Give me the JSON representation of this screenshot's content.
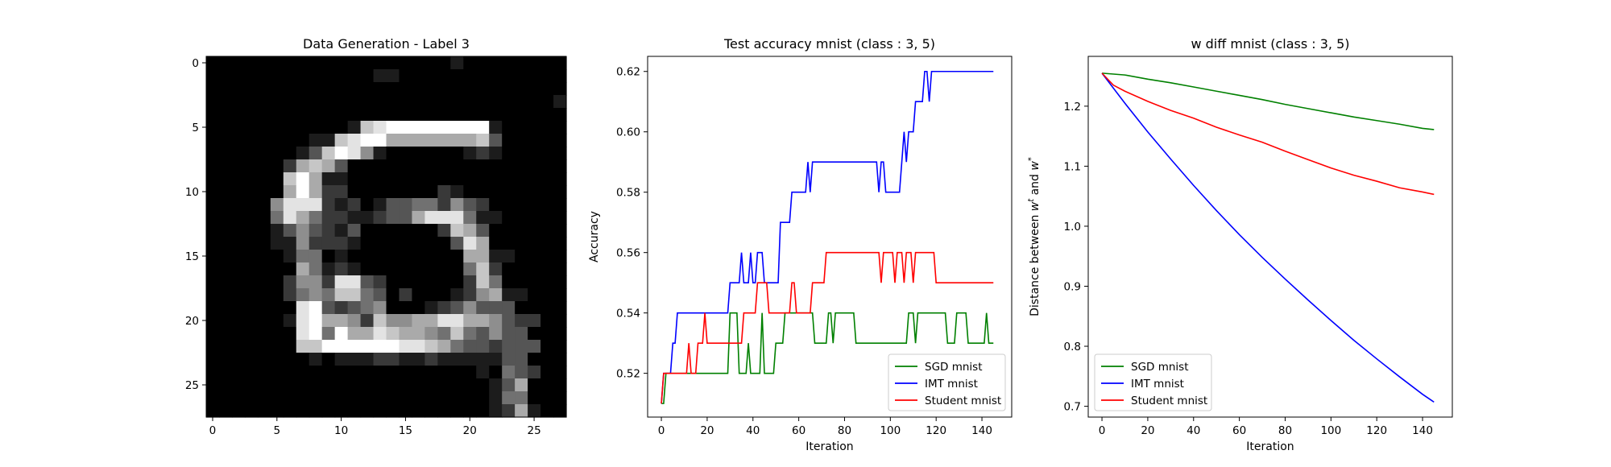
{
  "figure": {
    "panels": 3
  },
  "chart_data": [
    {
      "type": "heatmap",
      "title": "Data Generation - Label 3",
      "xlabel": "",
      "ylabel": "",
      "colormap": "gray",
      "xticks": [
        0,
        5,
        10,
        15,
        20,
        25
      ],
      "yticks": [
        0,
        5,
        10,
        15,
        20,
        25
      ],
      "xlim": [
        -0.5,
        27.5
      ],
      "ylim": [
        27.5,
        -0.5
      ],
      "grid_size": [
        28,
        28
      ],
      "rows": [
        "0000000000000000000100000000",
        "0000000000000110000000000000",
        "0000000000000000000000000000",
        "0000000000000000000000000001",
        "0000000000000000000000000000",
        "0000000000017899999999100000",
        "0000000011789966666667300000",
        "0000000137985100000012100000",
        "0000002676300000000000000000",
        "0000007961100000000000000000",
        "0000006962200000002100000000",
        "0000058882120133442532000000",
        "0000048642211233688841100000",
        "0000013532130000002763000000",
        "0000011522210000000386000000",
        "0000001440100000000066110000",
        "0000000641210000000047200000",
        "0000002552883200000027400000",
        "0000002454774302000125611000",
        "0000000893234500012353330000",
        "0000001896652755668866532200",
        "0000000894966876654743533000",
        "0000000779999998876433233300",
        "0000000010111221121111133000",
        "0000000000000000000001043200",
        "0000000000000000000000136000",
        "0000000000000000000000144000",
        "0000000000000000000000126100"
      ]
    },
    {
      "type": "line",
      "title": "Test accuracy mnist (class : 3, 5)",
      "xlabel": "Iteration",
      "ylabel": "Accuracy",
      "xlim": [
        -6,
        153
      ],
      "ylim": [
        0.5055,
        0.625
      ],
      "xticks": [
        0,
        20,
        40,
        60,
        80,
        100,
        120,
        140
      ],
      "yticks": [
        0.52,
        0.54,
        0.56,
        0.58,
        0.6,
        0.62
      ],
      "ytick_labels": [
        "0.52",
        "0.54",
        "0.56",
        "0.58",
        "0.60",
        "0.62"
      ],
      "legend_position": "lower-right",
      "series": [
        {
          "name": "SGD mnist",
          "color": "#008000",
          "points": [
            [
              0,
              0.51
            ],
            [
              1,
              0.51
            ],
            [
              2,
              0.52
            ],
            [
              29,
              0.52
            ],
            [
              30,
              0.54
            ],
            [
              33,
              0.54
            ],
            [
              34,
              0.52
            ],
            [
              37,
              0.52
            ],
            [
              38,
              0.53
            ],
            [
              39,
              0.52
            ],
            [
              43,
              0.52
            ],
            [
              44,
              0.54
            ],
            [
              45,
              0.52
            ],
            [
              49,
              0.52
            ],
            [
              50,
              0.53
            ],
            [
              53,
              0.53
            ],
            [
              54,
              0.54
            ],
            [
              66,
              0.54
            ],
            [
              67,
              0.53
            ],
            [
              72,
              0.53
            ],
            [
              73,
              0.54
            ],
            [
              74,
              0.54
            ],
            [
              75,
              0.53
            ],
            [
              76,
              0.54
            ],
            [
              84,
              0.54
            ],
            [
              85,
              0.53
            ],
            [
              107,
              0.53
            ],
            [
              108,
              0.54
            ],
            [
              110,
              0.54
            ],
            [
              111,
              0.53
            ],
            [
              112,
              0.54
            ],
            [
              124,
              0.54
            ],
            [
              125,
              0.53
            ],
            [
              128,
              0.53
            ],
            [
              129,
              0.54
            ],
            [
              133,
              0.54
            ],
            [
              134,
              0.53
            ],
            [
              141,
              0.53
            ],
            [
              142,
              0.54
            ],
            [
              143,
              0.53
            ],
            [
              145,
              0.53
            ]
          ]
        },
        {
          "name": "IMT mnist",
          "color": "#0000ff",
          "points": [
            [
              0,
              0.51
            ],
            [
              1,
              0.52
            ],
            [
              4,
              0.52
            ],
            [
              5,
              0.53
            ],
            [
              6,
              0.53
            ],
            [
              7,
              0.54
            ],
            [
              29,
              0.54
            ],
            [
              30,
              0.55
            ],
            [
              34,
              0.55
            ],
            [
              35,
              0.56
            ],
            [
              36,
              0.55
            ],
            [
              38,
              0.55
            ],
            [
              39,
              0.56
            ],
            [
              40,
              0.55
            ],
            [
              41,
              0.55
            ],
            [
              42,
              0.56
            ],
            [
              44,
              0.56
            ],
            [
              45,
              0.55
            ],
            [
              51,
              0.55
            ],
            [
              52,
              0.57
            ],
            [
              56,
              0.57
            ],
            [
              57,
              0.58
            ],
            [
              63,
              0.58
            ],
            [
              64,
              0.59
            ],
            [
              65,
              0.58
            ],
            [
              66,
              0.59
            ],
            [
              94,
              0.59
            ],
            [
              95,
              0.58
            ],
            [
              96,
              0.59
            ],
            [
              97,
              0.59
            ],
            [
              98,
              0.58
            ],
            [
              104,
              0.58
            ],
            [
              105,
              0.59
            ],
            [
              106,
              0.6
            ],
            [
              107,
              0.59
            ],
            [
              108,
              0.6
            ],
            [
              110,
              0.6
            ],
            [
              111,
              0.61
            ],
            [
              114,
              0.61
            ],
            [
              115,
              0.62
            ],
            [
              116,
              0.62
            ],
            [
              117,
              0.61
            ],
            [
              118,
              0.62
            ],
            [
              145,
              0.62
            ]
          ]
        },
        {
          "name": "Student mnist",
          "color": "#ff0000",
          "points": [
            [
              0,
              0.51
            ],
            [
              1,
              0.52
            ],
            [
              11,
              0.52
            ],
            [
              12,
              0.53
            ],
            [
              13,
              0.52
            ],
            [
              15,
              0.52
            ],
            [
              16,
              0.53
            ],
            [
              18,
              0.53
            ],
            [
              19,
              0.54
            ],
            [
              20,
              0.53
            ],
            [
              35,
              0.53
            ],
            [
              36,
              0.54
            ],
            [
              41,
              0.54
            ],
            [
              42,
              0.55
            ],
            [
              46,
              0.55
            ],
            [
              47,
              0.54
            ],
            [
              56,
              0.54
            ],
            [
              57,
              0.55
            ],
            [
              58,
              0.55
            ],
            [
              59,
              0.54
            ],
            [
              65,
              0.54
            ],
            [
              66,
              0.55
            ],
            [
              71,
              0.55
            ],
            [
              72,
              0.56
            ],
            [
              95,
              0.56
            ],
            [
              96,
              0.55
            ],
            [
              97,
              0.56
            ],
            [
              101,
              0.56
            ],
            [
              102,
              0.55
            ],
            [
              103,
              0.56
            ],
            [
              105,
              0.56
            ],
            [
              106,
              0.55
            ],
            [
              107,
              0.56
            ],
            [
              109,
              0.56
            ],
            [
              110,
              0.55
            ],
            [
              111,
              0.56
            ],
            [
              119,
              0.56
            ],
            [
              120,
              0.55
            ],
            [
              145,
              0.55
            ]
          ]
        }
      ]
    },
    {
      "type": "line",
      "title": "w diff mnist (class : 3, 5)",
      "xlabel": "Iteration",
      "ylabel": "Distance between wᵗ and w*",
      "ylabel_parts": [
        "Distance between ",
        "w",
        "t",
        " and ",
        "w",
        "*"
      ],
      "xlim": [
        -6,
        153
      ],
      "ylim": [
        0.682,
        1.283
      ],
      "xticks": [
        0,
        20,
        40,
        60,
        80,
        100,
        120,
        140
      ],
      "yticks": [
        0.7,
        0.8,
        0.9,
        1.0,
        1.1,
        1.2
      ],
      "ytick_labels": [
        "0.7",
        "0.8",
        "0.9",
        "1.0",
        "1.1",
        "1.2"
      ],
      "legend_position": "lower-left",
      "series": [
        {
          "name": "SGD mnist",
          "color": "#008000",
          "points": [
            [
              0,
              1.255
            ],
            [
              10,
              1.252
            ],
            [
              20,
              1.245
            ],
            [
              30,
              1.239
            ],
            [
              40,
              1.232
            ],
            [
              50,
              1.225
            ],
            [
              60,
              1.218
            ],
            [
              70,
              1.211
            ],
            [
              80,
              1.203
            ],
            [
              90,
              1.196
            ],
            [
              100,
              1.189
            ],
            [
              110,
              1.182
            ],
            [
              120,
              1.176
            ],
            [
              130,
              1.17
            ],
            [
              140,
              1.163
            ],
            [
              145,
              1.161
            ]
          ]
        },
        {
          "name": "IMT mnist",
          "color": "#0000ff",
          "points": [
            [
              0,
              1.255
            ],
            [
              10,
              1.205
            ],
            [
              20,
              1.157
            ],
            [
              30,
              1.112
            ],
            [
              40,
              1.068
            ],
            [
              50,
              1.026
            ],
            [
              60,
              0.986
            ],
            [
              70,
              0.948
            ],
            [
              80,
              0.912
            ],
            [
              90,
              0.877
            ],
            [
              100,
              0.843
            ],
            [
              110,
              0.81
            ],
            [
              120,
              0.779
            ],
            [
              130,
              0.749
            ],
            [
              140,
              0.72
            ],
            [
              145,
              0.707
            ]
          ]
        },
        {
          "name": "Student mnist",
          "color": "#ff0000",
          "points": [
            [
              0,
              1.255
            ],
            [
              5,
              1.235
            ],
            [
              10,
              1.225
            ],
            [
              20,
              1.208
            ],
            [
              30,
              1.193
            ],
            [
              40,
              1.18
            ],
            [
              50,
              1.165
            ],
            [
              60,
              1.152
            ],
            [
              70,
              1.14
            ],
            [
              80,
              1.125
            ],
            [
              90,
              1.111
            ],
            [
              100,
              1.097
            ],
            [
              110,
              1.085
            ],
            [
              120,
              1.075
            ],
            [
              130,
              1.064
            ],
            [
              140,
              1.057
            ],
            [
              145,
              1.053
            ]
          ]
        }
      ]
    }
  ]
}
